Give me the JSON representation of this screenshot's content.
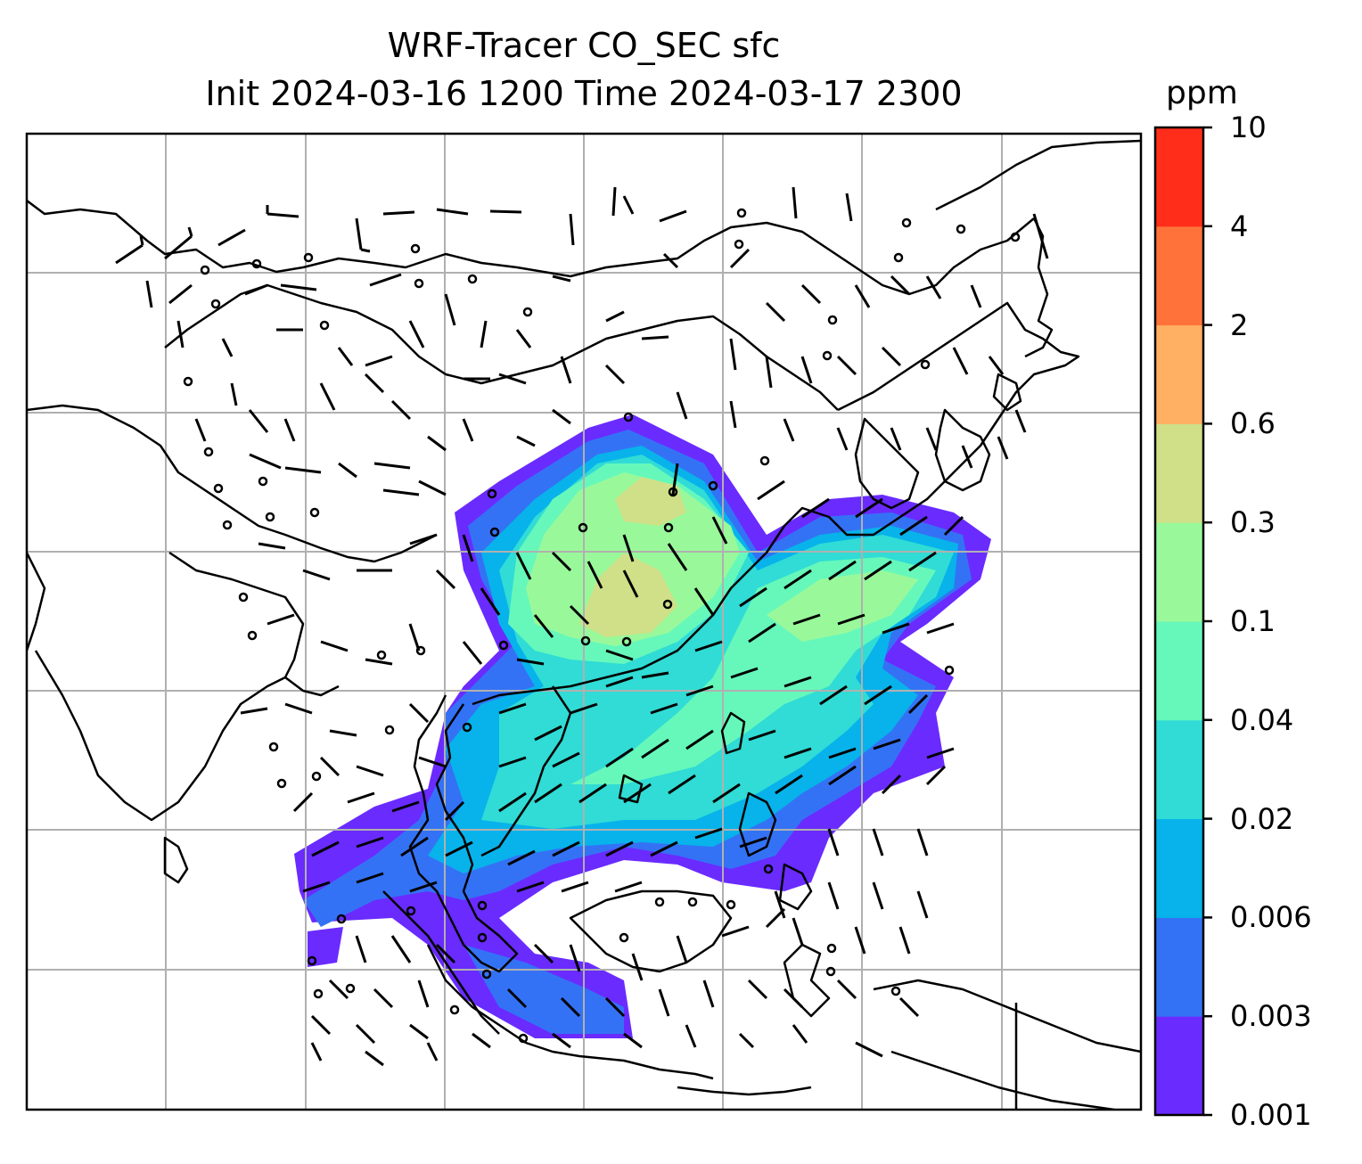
{
  "title": {
    "line1": "WRF-Tracer CO_SEC sfc",
    "line2": "Init 2024-03-16 1200 Time 2024-03-17 2300"
  },
  "colorbar": {
    "unit": "ppm",
    "levels": [
      "0.001",
      "0.003",
      "0.006",
      "0.02",
      "0.04",
      "0.1",
      "0.3",
      "0.6",
      "2",
      "4",
      "10"
    ],
    "colors": [
      "#6a2bff",
      "#3472f5",
      "#07b3ea",
      "#30dcd5",
      "#66f8bb",
      "#99f99a",
      "#cfe088",
      "#ffb062",
      "#ff733a",
      "#ff2d1a"
    ]
  },
  "map": {
    "gridlines": true,
    "gridline_color": "#b0b0b0",
    "coastline_color": "#000000",
    "wind_barbs": true
  }
}
